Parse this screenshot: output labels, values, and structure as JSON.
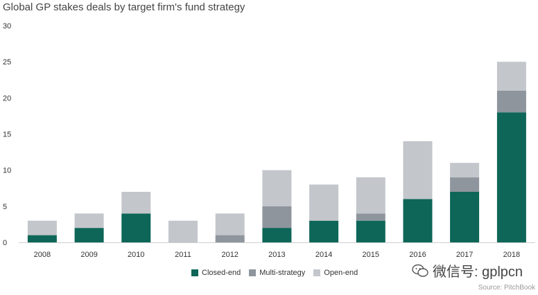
{
  "chart_data": {
    "type": "bar",
    "stacked": true,
    "title": "Global GP stakes deals by target firm's fund strategy",
    "categories": [
      "2008",
      "2009",
      "2010",
      "2011",
      "2012",
      "2013",
      "2014",
      "2015",
      "2016",
      "2017",
      "2018"
    ],
    "series": [
      {
        "name": "Closed-end",
        "color": "#0d6657",
        "values": [
          1,
          2,
          4,
          0,
          0,
          2,
          3,
          3,
          6,
          7,
          18
        ]
      },
      {
        "name": "Multi-strategy",
        "color": "#8e959d",
        "values": [
          0,
          0,
          0,
          0,
          1,
          3,
          0,
          1,
          0,
          2,
          3
        ]
      },
      {
        "name": "Open-end",
        "color": "#c3c6cb",
        "values": [
          2,
          2,
          3,
          3,
          3,
          5,
          5,
          5,
          8,
          2,
          4
        ]
      }
    ],
    "yticks": [
      0,
      5,
      10,
      15,
      20,
      25,
      30
    ],
    "ylim": [
      0,
      30
    ],
    "grid": false,
    "legend": "bottom"
  },
  "watermark": {
    "icon": "wechat-icon",
    "text": "微信号: gplpcn"
  },
  "source": "Source: PitchBook"
}
